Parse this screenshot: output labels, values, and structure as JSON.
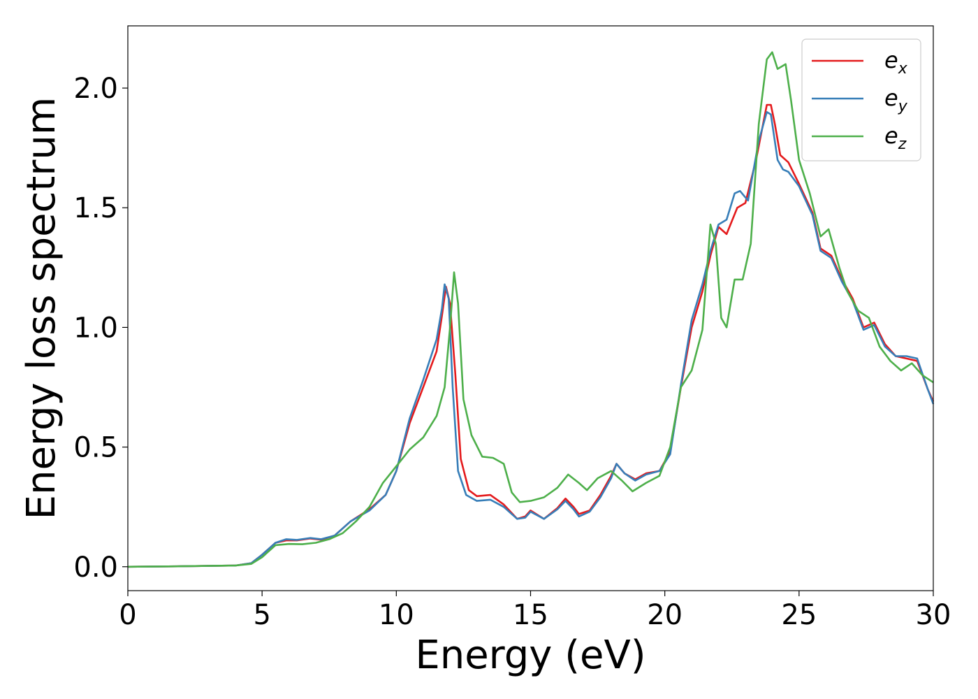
{
  "chart_data": {
    "type": "line",
    "title": "",
    "xlabel": "Energy (eV)",
    "ylabel": "Energy loss spectrum",
    "xlim": [
      0,
      30
    ],
    "ylim": [
      -0.1,
      2.26
    ],
    "xticks": [
      0,
      5,
      10,
      15,
      20,
      25,
      30
    ],
    "xtick_labels": [
      "0",
      "5",
      "10",
      "15",
      "20",
      "25",
      "30"
    ],
    "yticks": [
      0.0,
      0.5,
      1.0,
      1.5,
      2.0
    ],
    "ytick_labels": [
      "0.0",
      "0.5",
      "1.0",
      "1.5",
      "2.0"
    ],
    "grid": false,
    "legend_position": "top-right",
    "series": [
      {
        "name": "e",
        "subscript": "x",
        "color": "#e41a1c",
        "points": [
          [
            0,
            0
          ],
          [
            2,
            0.002
          ],
          [
            4,
            0.005
          ],
          [
            4.6,
            0.015
          ],
          [
            5.0,
            0.05
          ],
          [
            5.5,
            0.1
          ],
          [
            5.9,
            0.11
          ],
          [
            6.3,
            0.11
          ],
          [
            6.8,
            0.118
          ],
          [
            7.2,
            0.113
          ],
          [
            7.7,
            0.13
          ],
          [
            8.3,
            0.19
          ],
          [
            9.0,
            0.24
          ],
          [
            9.6,
            0.3
          ],
          [
            10.0,
            0.4
          ],
          [
            10.5,
            0.6
          ],
          [
            11.0,
            0.75
          ],
          [
            11.5,
            0.9
          ],
          [
            11.7,
            1.05
          ],
          [
            11.85,
            1.17
          ],
          [
            12.0,
            1.1
          ],
          [
            12.2,
            0.8
          ],
          [
            12.4,
            0.45
          ],
          [
            12.7,
            0.32
          ],
          [
            13.0,
            0.295
          ],
          [
            13.5,
            0.3
          ],
          [
            14.0,
            0.26
          ],
          [
            14.5,
            0.2
          ],
          [
            14.8,
            0.21
          ],
          [
            15.0,
            0.235
          ],
          [
            15.5,
            0.2
          ],
          [
            16.0,
            0.245
          ],
          [
            16.3,
            0.285
          ],
          [
            16.6,
            0.25
          ],
          [
            16.8,
            0.22
          ],
          [
            17.2,
            0.235
          ],
          [
            17.6,
            0.3
          ],
          [
            18.0,
            0.38
          ],
          [
            18.2,
            0.43
          ],
          [
            18.5,
            0.39
          ],
          [
            18.9,
            0.365
          ],
          [
            19.3,
            0.39
          ],
          [
            19.8,
            0.4
          ],
          [
            20.2,
            0.48
          ],
          [
            20.6,
            0.75
          ],
          [
            21.0,
            1.0
          ],
          [
            21.4,
            1.15
          ],
          [
            21.7,
            1.3
          ],
          [
            22.0,
            1.42
          ],
          [
            22.3,
            1.39
          ],
          [
            22.7,
            1.5
          ],
          [
            23.0,
            1.52
          ],
          [
            23.4,
            1.7
          ],
          [
            23.8,
            1.93
          ],
          [
            23.95,
            1.93
          ],
          [
            24.1,
            1.85
          ],
          [
            24.3,
            1.72
          ],
          [
            24.6,
            1.69
          ],
          [
            25.0,
            1.6
          ],
          [
            25.5,
            1.48
          ],
          [
            25.8,
            1.33
          ],
          [
            26.2,
            1.3
          ],
          [
            26.6,
            1.2
          ],
          [
            27.0,
            1.12
          ],
          [
            27.4,
            1.0
          ],
          [
            27.8,
            1.02
          ],
          [
            28.2,
            0.93
          ],
          [
            28.6,
            0.88
          ],
          [
            29.0,
            0.87
          ],
          [
            29.4,
            0.86
          ],
          [
            29.8,
            0.74
          ],
          [
            30.0,
            0.69
          ]
        ]
      },
      {
        "name": "e",
        "subscript": "y",
        "color": "#377eb8",
        "points": [
          [
            0,
            0
          ],
          [
            2,
            0.002
          ],
          [
            4,
            0.005
          ],
          [
            4.6,
            0.015
          ],
          [
            5.0,
            0.05
          ],
          [
            5.5,
            0.1
          ],
          [
            5.9,
            0.115
          ],
          [
            6.3,
            0.112
          ],
          [
            6.8,
            0.12
          ],
          [
            7.2,
            0.115
          ],
          [
            7.7,
            0.13
          ],
          [
            8.3,
            0.19
          ],
          [
            9.0,
            0.235
          ],
          [
            9.6,
            0.3
          ],
          [
            10.0,
            0.4
          ],
          [
            10.5,
            0.62
          ],
          [
            11.0,
            0.78
          ],
          [
            11.5,
            0.95
          ],
          [
            11.7,
            1.08
          ],
          [
            11.8,
            1.18
          ],
          [
            11.95,
            1.12
          ],
          [
            12.1,
            0.75
          ],
          [
            12.3,
            0.4
          ],
          [
            12.6,
            0.3
          ],
          [
            13.0,
            0.275
          ],
          [
            13.5,
            0.28
          ],
          [
            14.0,
            0.25
          ],
          [
            14.5,
            0.2
          ],
          [
            14.8,
            0.205
          ],
          [
            15.0,
            0.23
          ],
          [
            15.5,
            0.2
          ],
          [
            16.0,
            0.24
          ],
          [
            16.3,
            0.275
          ],
          [
            16.6,
            0.24
          ],
          [
            16.8,
            0.21
          ],
          [
            17.2,
            0.23
          ],
          [
            17.6,
            0.29
          ],
          [
            18.0,
            0.37
          ],
          [
            18.2,
            0.43
          ],
          [
            18.5,
            0.39
          ],
          [
            18.9,
            0.36
          ],
          [
            19.3,
            0.385
          ],
          [
            19.8,
            0.4
          ],
          [
            20.2,
            0.47
          ],
          [
            20.6,
            0.76
          ],
          [
            21.0,
            1.03
          ],
          [
            21.4,
            1.18
          ],
          [
            21.7,
            1.32
          ],
          [
            22.0,
            1.43
          ],
          [
            22.3,
            1.45
          ],
          [
            22.6,
            1.56
          ],
          [
            22.8,
            1.57
          ],
          [
            23.1,
            1.53
          ],
          [
            23.5,
            1.78
          ],
          [
            23.8,
            1.9
          ],
          [
            23.95,
            1.89
          ],
          [
            24.2,
            1.7
          ],
          [
            24.4,
            1.66
          ],
          [
            24.6,
            1.65
          ],
          [
            25.0,
            1.59
          ],
          [
            25.5,
            1.47
          ],
          [
            25.8,
            1.32
          ],
          [
            26.2,
            1.29
          ],
          [
            26.6,
            1.19
          ],
          [
            27.0,
            1.11
          ],
          [
            27.4,
            0.99
          ],
          [
            27.8,
            1.01
          ],
          [
            28.2,
            0.92
          ],
          [
            28.6,
            0.88
          ],
          [
            29.0,
            0.88
          ],
          [
            29.4,
            0.87
          ],
          [
            29.8,
            0.74
          ],
          [
            30.0,
            0.68
          ]
        ]
      },
      {
        "name": "e",
        "subscript": "z",
        "color": "#4daf4a",
        "points": [
          [
            0,
            0
          ],
          [
            2,
            0.002
          ],
          [
            4,
            0.005
          ],
          [
            4.6,
            0.012
          ],
          [
            5.0,
            0.04
          ],
          [
            5.5,
            0.09
          ],
          [
            6.0,
            0.095
          ],
          [
            6.5,
            0.094
          ],
          [
            7.0,
            0.1
          ],
          [
            7.5,
            0.115
          ],
          [
            8.0,
            0.14
          ],
          [
            8.5,
            0.19
          ],
          [
            9.0,
            0.25
          ],
          [
            9.5,
            0.35
          ],
          [
            10.0,
            0.42
          ],
          [
            10.5,
            0.49
          ],
          [
            11.0,
            0.54
          ],
          [
            11.5,
            0.63
          ],
          [
            11.8,
            0.75
          ],
          [
            12.0,
            1.0
          ],
          [
            12.15,
            1.23
          ],
          [
            12.3,
            1.1
          ],
          [
            12.5,
            0.7
          ],
          [
            12.8,
            0.55
          ],
          [
            13.2,
            0.46
          ],
          [
            13.6,
            0.455
          ],
          [
            14.0,
            0.43
          ],
          [
            14.3,
            0.31
          ],
          [
            14.6,
            0.27
          ],
          [
            15.0,
            0.275
          ],
          [
            15.5,
            0.29
          ],
          [
            16.0,
            0.33
          ],
          [
            16.4,
            0.385
          ],
          [
            16.8,
            0.35
          ],
          [
            17.1,
            0.32
          ],
          [
            17.5,
            0.37
          ],
          [
            18.0,
            0.4
          ],
          [
            18.4,
            0.36
          ],
          [
            18.8,
            0.315
          ],
          [
            19.3,
            0.35
          ],
          [
            19.8,
            0.38
          ],
          [
            20.2,
            0.5
          ],
          [
            20.6,
            0.75
          ],
          [
            21.0,
            0.82
          ],
          [
            21.4,
            0.99
          ],
          [
            21.7,
            1.43
          ],
          [
            21.9,
            1.35
          ],
          [
            22.1,
            1.04
          ],
          [
            22.3,
            1.0
          ],
          [
            22.6,
            1.2
          ],
          [
            22.9,
            1.2
          ],
          [
            23.2,
            1.35
          ],
          [
            23.5,
            1.85
          ],
          [
            23.8,
            2.12
          ],
          [
            24.0,
            2.15
          ],
          [
            24.2,
            2.08
          ],
          [
            24.5,
            2.1
          ],
          [
            24.7,
            1.95
          ],
          [
            25.0,
            1.7
          ],
          [
            25.4,
            1.56
          ],
          [
            25.8,
            1.38
          ],
          [
            26.1,
            1.41
          ],
          [
            26.5,
            1.25
          ],
          [
            26.8,
            1.15
          ],
          [
            27.2,
            1.07
          ],
          [
            27.6,
            1.04
          ],
          [
            28.0,
            0.92
          ],
          [
            28.4,
            0.86
          ],
          [
            28.8,
            0.82
          ],
          [
            29.2,
            0.85
          ],
          [
            29.6,
            0.8
          ],
          [
            30.0,
            0.77
          ]
        ]
      }
    ]
  }
}
